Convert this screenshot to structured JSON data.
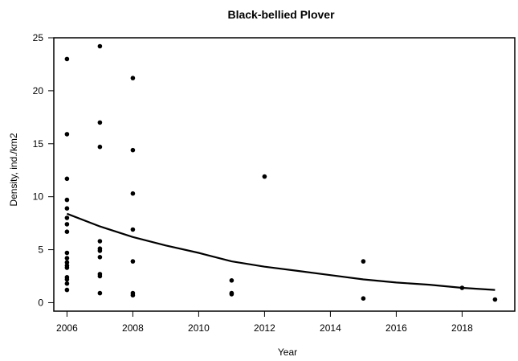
{
  "chart_data": {
    "type": "scatter",
    "title": "Black-bellied Plover",
    "xlabel": "Year",
    "ylabel": "Density, ind./km2",
    "xlim": [
      2005.6,
      2019.6
    ],
    "ylim": [
      -0.8,
      25
    ],
    "x_ticks": [
      2006,
      2008,
      2010,
      2012,
      2014,
      2016,
      2018
    ],
    "x_tick_labels": [
      "2006",
      "2008",
      "2010",
      "2012",
      "2014",
      "2016",
      "2018"
    ],
    "y_ticks": [
      0,
      5,
      10,
      15,
      20,
      25
    ],
    "y_tick_labels": [
      "0",
      "5",
      "10",
      "15",
      "20",
      "25"
    ],
    "grid": false,
    "series": [
      {
        "type": "scatter",
        "color": "#000000",
        "points": [
          [
            2006,
            23.0
          ],
          [
            2006,
            15.9
          ],
          [
            2006,
            11.7
          ],
          [
            2006,
            9.7
          ],
          [
            2006,
            8.9
          ],
          [
            2006,
            8.0
          ],
          [
            2006,
            7.4
          ],
          [
            2006,
            6.7
          ],
          [
            2006,
            4.7
          ],
          [
            2006,
            4.2
          ],
          [
            2006,
            3.8
          ],
          [
            2006,
            3.5
          ],
          [
            2006,
            3.3
          ],
          [
            2006,
            2.4
          ],
          [
            2006,
            2.2
          ],
          [
            2006,
            1.8
          ],
          [
            2006,
            1.2
          ],
          [
            2007,
            24.2
          ],
          [
            2007,
            17.0
          ],
          [
            2007,
            14.7
          ],
          [
            2007,
            5.8
          ],
          [
            2007,
            5.1
          ],
          [
            2007,
            4.9
          ],
          [
            2007,
            4.3
          ],
          [
            2007,
            2.7
          ],
          [
            2007,
            2.5
          ],
          [
            2007,
            0.9
          ],
          [
            2008,
            21.2
          ],
          [
            2008,
            14.4
          ],
          [
            2008,
            10.3
          ],
          [
            2008,
            6.9
          ],
          [
            2008,
            3.9
          ],
          [
            2008,
            0.9
          ],
          [
            2008,
            0.7
          ],
          [
            2011,
            2.1
          ],
          [
            2011,
            0.9
          ],
          [
            2011,
            0.8
          ],
          [
            2012,
            11.9
          ],
          [
            2015,
            3.9
          ],
          [
            2015,
            0.4
          ],
          [
            2018,
            1.4
          ],
          [
            2019,
            0.3
          ]
        ]
      },
      {
        "type": "line",
        "color": "#000000",
        "points": [
          [
            2006,
            8.4
          ],
          [
            2007,
            7.2
          ],
          [
            2008,
            6.2
          ],
          [
            2009,
            5.4
          ],
          [
            2010,
            4.7
          ],
          [
            2011,
            3.9
          ],
          [
            2012,
            3.4
          ],
          [
            2013,
            3.0
          ],
          [
            2014,
            2.6
          ],
          [
            2015,
            2.2
          ],
          [
            2016,
            1.9
          ],
          [
            2017,
            1.7
          ],
          [
            2018,
            1.4
          ],
          [
            2019,
            1.2
          ]
        ]
      }
    ]
  }
}
